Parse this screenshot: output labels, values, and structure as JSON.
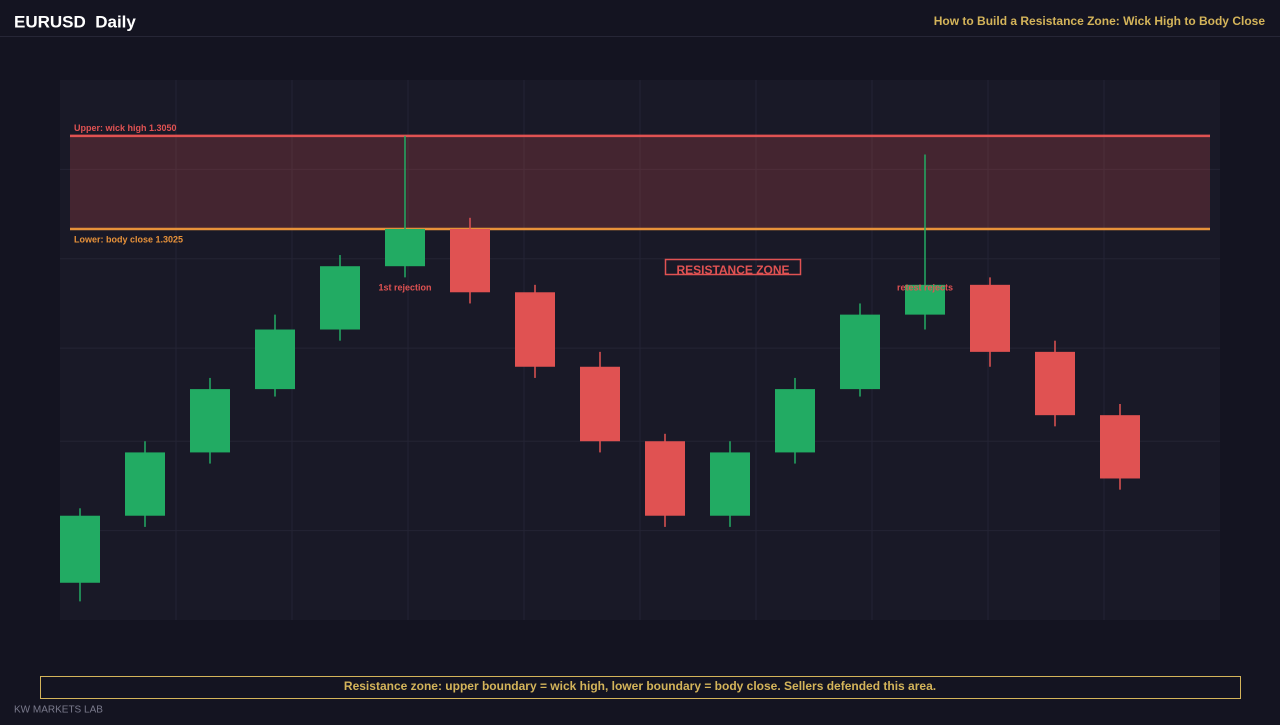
{
  "header": {
    "title": "EURUSD  Daily",
    "subtitle": "How to Build a Resistance Zone: Wick High to Body Close"
  },
  "chart_data": {
    "type": "candlestick",
    "categories": [
      null,
      null,
      null,
      null,
      null,
      null,
      null,
      null,
      null,
      null,
      null,
      null,
      null,
      null,
      null,
      null,
      null
    ],
    "open": [
      1.293,
      1.2948,
      1.2965,
      1.2982,
      1.2998,
      1.3015,
      1.3025,
      1.3008,
      1.2988,
      1.2968,
      1.2948,
      1.2965,
      1.2982,
      1.3002,
      1.301,
      1.2992,
      1.2975
    ],
    "high": [
      1.295,
      1.2968,
      1.2985,
      1.3002,
      1.3018,
      1.305,
      1.3028,
      1.301,
      1.2992,
      1.297,
      1.2968,
      1.2985,
      1.3005,
      1.3045,
      1.3012,
      1.2995,
      1.2978
    ],
    "low": [
      1.2925,
      1.2945,
      1.2962,
      1.298,
      1.2995,
      1.3012,
      1.3005,
      1.2985,
      1.2965,
      1.2945,
      1.2945,
      1.2962,
      1.298,
      1.2998,
      1.2988,
      1.2972,
      1.2955
    ],
    "close": [
      1.2948,
      1.2965,
      1.2982,
      1.2998,
      1.3015,
      1.3025,
      1.3008,
      1.2988,
      1.2968,
      1.2948,
      1.2965,
      1.2982,
      1.3002,
      1.301,
      1.2992,
      1.2975,
      1.2958
    ],
    "up_color": "#22ab63",
    "down_color": "#e05252",
    "ylim": [
      1.292,
      1.3065
    ],
    "yticks": [
      1.2944,
      1.2968,
      1.2993,
      1.3017,
      1.3041
    ],
    "grid": true,
    "zone": {
      "upper": 1.305,
      "lower": 1.3025,
      "upper_label": "Upper: wick high 1.3050",
      "lower_label": "Lower: body close 1.3025",
      "label": "RESISTANCE ZONE",
      "color": "#e05252",
      "lower_color": "#e8923a"
    },
    "annotations": [
      "1st rejection",
      "retest rejects"
    ]
  },
  "footer": {
    "caption": "Resistance zone: upper boundary = wick high, lower boundary = body close. Sellers defended this area.",
    "brand": "KW MARKETS LAB"
  }
}
